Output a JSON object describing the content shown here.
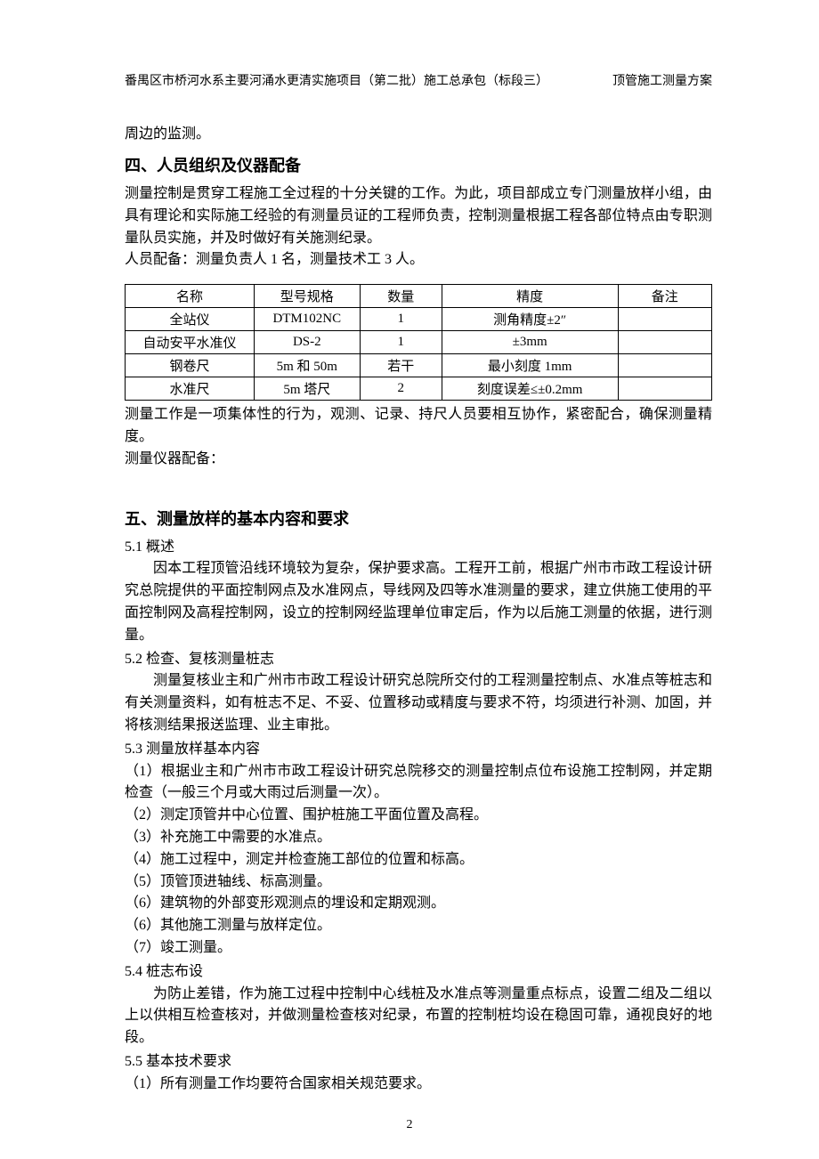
{
  "header": {
    "left": "番禺区市桥河水系主要河涌水更清实施项目（第二批）施工总承包（标段三）",
    "right": "顶管施工测量方案"
  },
  "continuation": "周边的监测。",
  "section4": {
    "title": "四、人员组织及仪器配备",
    "p1": "测量控制是贯穿工程施工全过程的十分关键的工作。为此，项目部成立专门测量放样小组，由具有理论和实际施工经验的有测量员证的工程师负责，控制测量根据工程各部位特点由专职测量队员实施，并及时做好有关施测纪录。",
    "p2": "人员配备：测量负责人 1 名，测量技术工 3 人。",
    "table": {
      "columns": [
        "名称",
        "型号规格",
        "数量",
        "精度",
        "备注"
      ],
      "rows": [
        [
          "全站仪",
          "DTM102NC",
          "1",
          "测角精度±2″",
          ""
        ],
        [
          "自动安平水准仪",
          "DS-2",
          "1",
          "±3mm",
          ""
        ],
        [
          "钢卷尺",
          "5m 和 50m",
          "若干",
          "最小刻度 1mm",
          ""
        ],
        [
          "水准尺",
          "5m 塔尺",
          "2",
          "刻度误差≤±0.2mm",
          ""
        ]
      ],
      "col_widths": [
        "22%",
        "18%",
        "14%",
        "30%",
        "16%"
      ]
    },
    "p3": "测量工作是一项集体性的行为，观测、记录、持尺人员要相互协作，紧密配合，确保测量精度。",
    "p4": "测量仪器配备："
  },
  "section5": {
    "title": "五、测量放样的基本内容和要求",
    "s1_num": "5.1 概述",
    "s1_p": "因本工程顶管沿线环境较为复杂，保护要求高。工程开工前，根据广州市市政工程设计研究总院提供的平面控制网点及水准网点，导线网及四等水准测量的要求，建立供施工使用的平面控制网及高程控制网，设立的控制网经监理单位审定后，作为以后施工测量的依据，进行测量。",
    "s2_num": "5.2 检查、复核测量桩志",
    "s2_p": "测量复核业主和广州市市政工程设计研究总院所交付的工程测量控制点、水准点等桩志和有关测量资料，如有桩志不足、不妥、位置移动或精度与要求不符，均须进行补测、加固，并将核测结果报送监理、业主审批。",
    "s3_num": "5.3 测量放样基本内容",
    "s3_items": [
      "（1）根据业主和广州市市政工程设计研究总院移交的测量控制点位布设施工控制网，并定期检查（一般三个月或大雨过后测量一次）。",
      "（2）测定顶管井中心位置、围护桩施工平面位置及高程。",
      "（3）补充施工中需要的水准点。",
      "（4）施工过程中，测定并检查施工部位的位置和标高。",
      "（5）顶管顶进轴线、标高测量。",
      "（6）建筑物的外部变形观测点的埋设和定期观测。",
      "（6）其他施工测量与放样定位。",
      "（7）竣工测量。"
    ],
    "s4_num": "5.4 桩志布设",
    "s4_p": "为防止差错，作为施工过程中控制中心线桩及水准点等测量重点标点，设置二组及二组以上以供相互检查核对，并做测量检查核对纪录，布置的控制桩均设在稳固可靠，通视良好的地段。",
    "s5_num": "5.5 基本技术要求",
    "s5_items": [
      "（1）所有测量工作均要符合国家相关规范要求。"
    ]
  },
  "page_number": "2"
}
